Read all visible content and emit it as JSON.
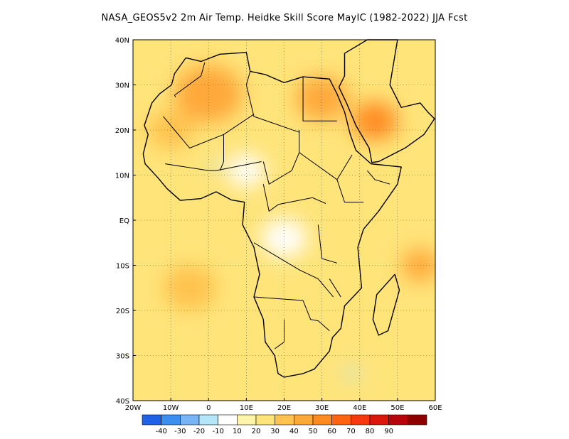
{
  "title": "NASA_GEOS5v2 2m Air Temp. Heidke Skill Score MayIC (1982-2022) JJA Fcst",
  "map": {
    "lon_range": [
      -20,
      60
    ],
    "lat_range": [
      -40,
      40
    ],
    "lon_ticks": [
      {
        "value": -20,
        "label": "20W"
      },
      {
        "value": -10,
        "label": "10W"
      },
      {
        "value": 0,
        "label": "0"
      },
      {
        "value": 10,
        "label": "10E"
      },
      {
        "value": 20,
        "label": "20E"
      },
      {
        "value": 30,
        "label": "30E"
      },
      {
        "value": 40,
        "label": "40E"
      },
      {
        "value": 50,
        "label": "50E"
      },
      {
        "value": 60,
        "label": "60E"
      }
    ],
    "lat_ticks": [
      {
        "value": 40,
        "label": "40N"
      },
      {
        "value": 30,
        "label": "30N"
      },
      {
        "value": 20,
        "label": "20N"
      },
      {
        "value": 10,
        "label": "10N"
      },
      {
        "value": 0,
        "label": "EQ"
      },
      {
        "value": -10,
        "label": "10S"
      },
      {
        "value": -20,
        "label": "20S"
      },
      {
        "value": -30,
        "label": "30S"
      },
      {
        "value": -40,
        "label": "40S"
      }
    ],
    "gridlines": true
  },
  "colorbar": {
    "colors": [
      "#1f62e6",
      "#3c8ef0",
      "#78b4f6",
      "#b4e6fa",
      "#ffffff",
      "#fff5a8",
      "#ffe47a",
      "#ffc24e",
      "#ffa83a",
      "#ff8a20",
      "#ff6410",
      "#f23a0c",
      "#d8180a",
      "#b4060a",
      "#8c0000"
    ],
    "labels": [
      "-40",
      "-30",
      "-20",
      "-10",
      "10",
      "20",
      "30",
      "40",
      "50",
      "60",
      "70",
      "80",
      "90"
    ]
  },
  "regions": [
    {
      "name": "arabia-hot",
      "lon": 44,
      "lat": 22,
      "r": 6,
      "color": "#ff8a20"
    },
    {
      "name": "egypt-sudan",
      "lon": 30,
      "lat": 27,
      "r": 7,
      "color": "#ffa83a"
    },
    {
      "name": "sahara-west",
      "lon": 0,
      "lat": 28,
      "r": 9,
      "color": "#ffa83a"
    },
    {
      "name": "mauritania",
      "lon": -10,
      "lat": 20,
      "r": 6,
      "color": "#ffc24e"
    },
    {
      "name": "indian-ocean-east",
      "lon": 56,
      "lat": -10,
      "r": 5,
      "color": "#ffa83a"
    },
    {
      "name": "atlantic-south",
      "lon": -5,
      "lat": -15,
      "r": 7,
      "color": "#ffc24e"
    },
    {
      "name": "sahel-white",
      "lon": 10,
      "lat": 11,
      "r": 5,
      "color": "#ffffff"
    },
    {
      "name": "congo-white",
      "lon": 20,
      "lat": -4,
      "r": 6,
      "color": "#ffffff"
    },
    {
      "name": "sahel-blue",
      "lon": 2,
      "lat": 12,
      "r": 1.5,
      "color": "#b4e6fa"
    },
    {
      "name": "mozambique-channel-blue",
      "lon": 38,
      "lat": -34,
      "r": 1.8,
      "color": "#b4e6fa"
    }
  ]
}
